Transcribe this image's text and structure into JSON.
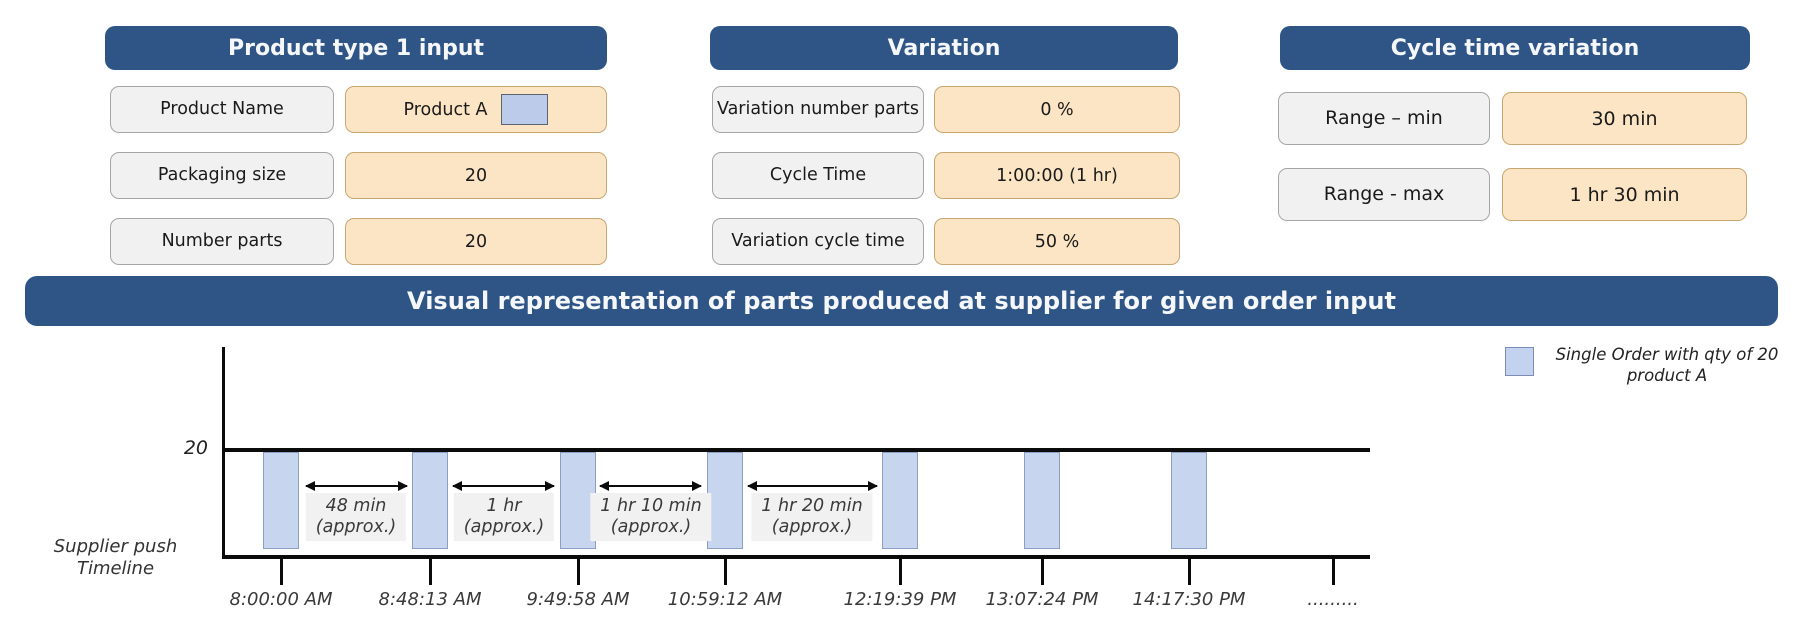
{
  "panels": [
    {
      "title": "Product type 1 input",
      "rows": [
        {
          "label": "Product Name",
          "value": "Product A",
          "swatch": true
        },
        {
          "label": "Packaging size",
          "value": "20"
        },
        {
          "label": "Number parts",
          "value": "20"
        }
      ]
    },
    {
      "title": "Variation",
      "rows": [
        {
          "label": "Variation number parts",
          "value": "0 %"
        },
        {
          "label": "Cycle Time",
          "value": "1:00:00 (1 hr)"
        },
        {
          "label": "Variation cycle time",
          "value": "50 %"
        }
      ]
    },
    {
      "title": "Cycle time variation",
      "rows": [
        {
          "label": "Range – min",
          "value": "30 min"
        },
        {
          "label": "Range - max",
          "value": "1 hr 30 min"
        }
      ]
    }
  ],
  "banner": {
    "title": "Visual representation of parts produced at supplier for given order input"
  },
  "legend": {
    "label": "Single Order with qty of 20 product A",
    "swatch_color": "#c3d2ee"
  },
  "chart_data": {
    "type": "bar",
    "title": "Visual representation of parts produced at supplier for given order input",
    "axis_label": "Supplier push Timeline",
    "y_tick_label": "20",
    "ylim": [
      0,
      20
    ],
    "grid": false,
    "legend_position": "top-right",
    "categories": [
      "8:00:00 AM",
      "8:48:13 AM",
      "9:49:58 AM",
      "10:59:12 AM",
      "12:19:39 PM",
      "13:07:24 PM",
      "14:17:30 PM",
      "........."
    ],
    "series": [
      {
        "name": "Single Order with qty of 20 product A",
        "values": [
          20,
          20,
          20,
          20,
          20,
          20,
          20,
          null
        ]
      }
    ],
    "bar_color": "#c8d5ef",
    "gap_annotations": [
      {
        "duration": "48 min",
        "qualifier": "(approx.)",
        "between": [
          0,
          1
        ]
      },
      {
        "duration": "1 hr",
        "qualifier": "(approx.)",
        "between": [
          1,
          2
        ]
      },
      {
        "duration": "1 hr 10 min",
        "qualifier": "(approx.)",
        "between": [
          2,
          3
        ]
      },
      {
        "duration": "1 hr 20 min",
        "qualifier": "(approx.)",
        "between": [
          3,
          4
        ]
      }
    ]
  },
  "colors": {
    "header_blue": "#2e5585",
    "value_cream": "#fce5c5",
    "label_gray": "#f1f1f1",
    "bar_blue": "#c8d5ef"
  }
}
